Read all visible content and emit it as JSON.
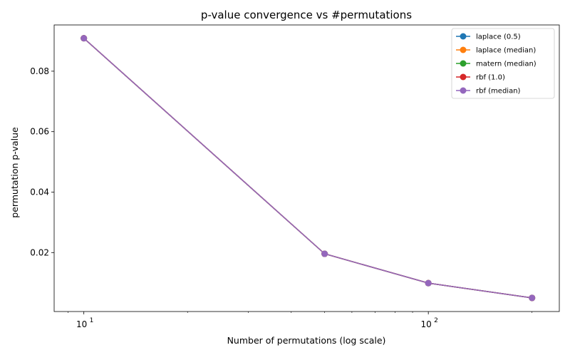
{
  "chart_data": {
    "type": "line",
    "title": "p-value convergence vs #permutations",
    "xlabel": "Number of permutations (log scale)",
    "ylabel": "permutation p-value",
    "xscale": "log",
    "x": [
      10,
      50,
      100,
      200
    ],
    "xlim": [
      8.2,
      240
    ],
    "ylim": [
      0.0005,
      0.0953
    ],
    "xticks": [
      {
        "value": 10,
        "base": "10",
        "exp": "1"
      },
      {
        "value": 100,
        "base": "10",
        "exp": "2"
      }
    ],
    "yticks": [
      {
        "value": 0.02,
        "label": "0.02"
      },
      {
        "value": 0.04,
        "label": "0.04"
      },
      {
        "value": 0.06,
        "label": "0.06"
      },
      {
        "value": 0.08,
        "label": "0.08"
      }
    ],
    "grid": false,
    "legend_position": "top-right",
    "series": [
      {
        "name": "laplace (0.5)",
        "color": "#1f77b4",
        "values": [
          0.0909,
          0.0196,
          0.0099,
          0.005
        ]
      },
      {
        "name": "laplace (median)",
        "color": "#ff7f0e",
        "values": [
          0.0909,
          0.0196,
          0.0099,
          0.005
        ]
      },
      {
        "name": "matern (median)",
        "color": "#2ca02c",
        "values": [
          0.0909,
          0.0196,
          0.0099,
          0.005
        ]
      },
      {
        "name": "rbf (1.0)",
        "color": "#d62728",
        "values": [
          0.0909,
          0.0196,
          0.0099,
          0.005
        ]
      },
      {
        "name": "rbf (median)",
        "color": "#9467bd",
        "values": [
          0.0909,
          0.0196,
          0.0099,
          0.005
        ]
      }
    ]
  }
}
